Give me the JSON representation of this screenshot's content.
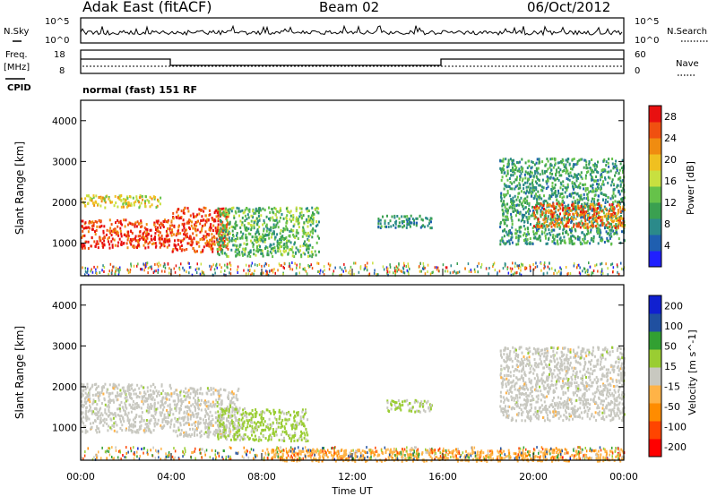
{
  "header": {
    "station": "Adak East (fitACF)",
    "beam": "Beam 02",
    "date": "06/Oct/2012"
  },
  "noise_panel": {
    "left_label": "N.Sky",
    "right_label": "N.Search",
    "left_ticks": [
      "10^5",
      "10^0"
    ],
    "right_ticks": [
      "10^5",
      "10^0"
    ]
  },
  "freq_panel": {
    "left_label": "Freq.",
    "left_unit": "[MHz]",
    "right_label": "Nave",
    "left_ticks": [
      "18",
      "8"
    ],
    "right_ticks": [
      "60",
      "0"
    ],
    "cpid_label": "CPID",
    "cpid_text": "normal (fast) 151 RF"
  },
  "colors": {
    "frame": "#000000",
    "power_scale": [
      "#2020ff",
      "#1f5fb0",
      "#2b8a8a",
      "#3aa050",
      "#66c24a",
      "#c8e040",
      "#f0c020",
      "#f08c10",
      "#f05010",
      "#e81010"
    ],
    "velocity_scale": [
      "#ff0000",
      "#ff4500",
      "#ff8c00",
      "#ffb347",
      "#c8c8c0",
      "#9acd32",
      "#32a032",
      "#2050a0",
      "#1020d0"
    ]
  },
  "chart_data": [
    {
      "type": "heatmap",
      "name": "power",
      "ylabel": "Slant Range [km]",
      "yticks": [
        "1000",
        "2000",
        "3000",
        "4000"
      ],
      "ylim": [
        200,
        4500
      ],
      "xlim": [
        0,
        24
      ],
      "colorbar": {
        "label": "Power [dB]",
        "ticks": [
          "4",
          "8",
          "12",
          "16",
          "20",
          "24",
          "28"
        ],
        "range": [
          0,
          30
        ]
      },
      "regions": [
        {
          "t0": 0.0,
          "t1": 4.0,
          "r0": 900,
          "r1": 1600,
          "value": 27
        },
        {
          "t0": 4.0,
          "t1": 6.5,
          "r0": 800,
          "r1": 1900,
          "value": 26
        },
        {
          "t0": 0.0,
          "t1": 3.5,
          "r0": 1900,
          "r1": 2200,
          "value": 18
        },
        {
          "t0": 6.0,
          "t1": 10.5,
          "r0": 700,
          "r1": 1900,
          "value": 12
        },
        {
          "t0": 13.0,
          "t1": 15.5,
          "r0": 1400,
          "r1": 1700,
          "value": 8
        },
        {
          "t0": 18.5,
          "t1": 24.0,
          "r0": 1000,
          "r1": 3100,
          "value": 10
        },
        {
          "t0": 20.0,
          "t1": 24.0,
          "r0": 1400,
          "r1": 2000,
          "value": 24
        }
      ]
    },
    {
      "type": "heatmap",
      "name": "velocity",
      "ylabel": "Slant Range [km]",
      "yticks": [
        "1000",
        "2000",
        "3000",
        "4000"
      ],
      "ylim": [
        200,
        4500
      ],
      "xlim": [
        0,
        24
      ],
      "xticks": [
        "00:00",
        "04:00",
        "08:00",
        "12:00",
        "16:00",
        "20:00",
        "00:00"
      ],
      "xlabel": "Time UT",
      "colorbar": {
        "label": "Velocity [m s^-1]",
        "ticks": [
          "200",
          "100",
          "50",
          "15",
          "-15",
          "-50",
          "-100",
          "-200"
        ],
        "range": [
          -250,
          250
        ]
      },
      "regions": [
        {
          "t0": 0.0,
          "t1": 4.0,
          "r0": 900,
          "r1": 2100,
          "value": 0
        },
        {
          "t0": 4.0,
          "t1": 7.0,
          "r0": 800,
          "r1": 2000,
          "value": 0
        },
        {
          "t0": 6.0,
          "t1": 10.0,
          "r0": 700,
          "r1": 1500,
          "value": 40
        },
        {
          "t0": 13.5,
          "t1": 15.5,
          "r0": 1400,
          "r1": 1700,
          "value": 30
        },
        {
          "t0": 18.5,
          "t1": 24.0,
          "r0": 1200,
          "r1": 3000,
          "value": 0
        },
        {
          "t0": 8.0,
          "t1": 24.0,
          "r0": 200,
          "r1": 500,
          "value": -60
        }
      ]
    }
  ]
}
